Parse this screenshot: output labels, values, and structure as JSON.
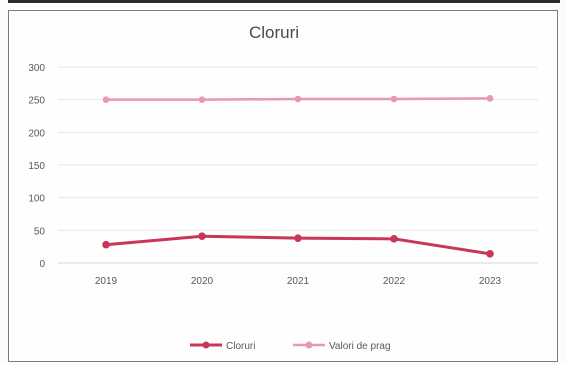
{
  "chart_data": {
    "type": "line",
    "title": "Cloruri",
    "categories": [
      "2019",
      "2020",
      "2021",
      "2022",
      "2023"
    ],
    "y_ticks": [
      "0",
      "50",
      "100",
      "150",
      "200",
      "250",
      "300"
    ],
    "ylim": [
      0,
      300
    ],
    "grid": true,
    "legend_position": "bottom",
    "series": [
      {
        "name": "Cloruri",
        "values": [
          28,
          41,
          38,
          37,
          14
        ],
        "color": "#c9365a"
      },
      {
        "name": "Valori de prag",
        "values": [
          250,
          250,
          251,
          251,
          252
        ],
        "color": "#e998b2"
      }
    ]
  }
}
